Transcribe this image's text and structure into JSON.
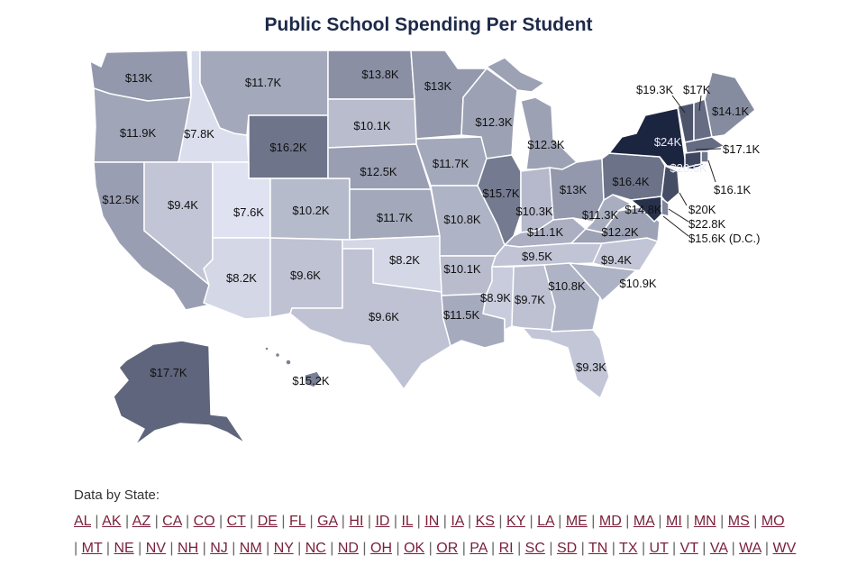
{
  "title": "Public School Spending Per Student",
  "colors": {
    "title": "#1e2a4a",
    "link": "#7a1f3a",
    "scale_light": "#dfe2f1",
    "scale_dark": "#1c2540"
  },
  "states": {
    "WA": {
      "value": 13.0,
      "label": "$13K"
    },
    "OR": {
      "value": 11.9,
      "label": "$11.9K"
    },
    "CA": {
      "value": 12.5,
      "label": "$12.5K"
    },
    "ID": {
      "value": 7.8,
      "label": "$7.8K"
    },
    "NV": {
      "value": 9.4,
      "label": "$9.4K"
    },
    "MT": {
      "value": 11.7,
      "label": "$11.7K"
    },
    "WY": {
      "value": 16.2,
      "label": "$16.2K"
    },
    "UT": {
      "value": 7.6,
      "label": "$7.6K"
    },
    "AZ": {
      "value": 8.2,
      "label": "$8.2K"
    },
    "CO": {
      "value": 10.2,
      "label": "$10.2K"
    },
    "NM": {
      "value": 9.6,
      "label": "$9.6K"
    },
    "ND": {
      "value": 13.8,
      "label": "$13.8K"
    },
    "SD": {
      "value": 10.1,
      "label": "$10.1K"
    },
    "NE": {
      "value": 12.5,
      "label": "$12.5K"
    },
    "KS": {
      "value": 11.7,
      "label": "$11.7K"
    },
    "OK": {
      "value": 8.2,
      "label": "$8.2K"
    },
    "TX": {
      "value": 9.6,
      "label": "$9.6K"
    },
    "MN": {
      "value": 13.0,
      "label": "$13K"
    },
    "IA": {
      "value": 11.7,
      "label": "$11.7K"
    },
    "MO": {
      "value": 10.8,
      "label": "$10.8K"
    },
    "AR": {
      "value": 10.1,
      "label": "$10.1K"
    },
    "LA": {
      "value": 11.5,
      "label": "$11.5K"
    },
    "WI": {
      "value": 12.3,
      "label": "$12.3K"
    },
    "IL": {
      "value": 15.7,
      "label": "$15.7K"
    },
    "MI": {
      "value": 12.3,
      "label": "$12.3K"
    },
    "IN": {
      "value": 10.3,
      "label": "$10.3K"
    },
    "OH": {
      "value": 13.0,
      "label": "$13K"
    },
    "KY": {
      "value": 11.1,
      "label": "$11.1K"
    },
    "TN": {
      "value": 9.5,
      "label": "$9.5K"
    },
    "MS": {
      "value": 8.9,
      "label": "$8.9K"
    },
    "AL": {
      "value": 9.7,
      "label": "$9.7K"
    },
    "GA": {
      "value": 10.8,
      "label": "$10.8K"
    },
    "FL": {
      "value": 9.3,
      "label": "$9.3K"
    },
    "SC": {
      "value": 10.9,
      "label": "$10.9K"
    },
    "NC": {
      "value": 9.4,
      "label": "$9.4K"
    },
    "VA": {
      "value": 12.2,
      "label": "$12.2K"
    },
    "WV": {
      "value": 11.3,
      "label": "$11.3K"
    },
    "PA": {
      "value": 16.4,
      "label": "$16.4K"
    },
    "NY": {
      "value": 24.0,
      "label": "$24K"
    },
    "VT": {
      "value": 19.3,
      "label": "$19.3K"
    },
    "NH": {
      "value": 17.0,
      "label": "$17K"
    },
    "ME": {
      "value": 14.1,
      "label": "$14.1K"
    },
    "MA": {
      "value": 17.1,
      "label": "$17.1K"
    },
    "RI": {
      "value": 16.1,
      "label": "$16.1K"
    },
    "CT": {
      "value": 20.6,
      "label": "$20.6K"
    },
    "NJ": {
      "value": 20.0,
      "label": "$20K"
    },
    "DE": {
      "value": 14.8,
      "label": "$14.8K"
    },
    "MD": {
      "value": 22.8,
      "label": "$22.8K"
    },
    "DC": {
      "value": 15.6,
      "label": "$15.6K (D.C.)"
    },
    "AK": {
      "value": 17.7,
      "label": "$17.7K"
    },
    "HI": {
      "value": 15.2,
      "label": "$15.2K"
    }
  },
  "footer": {
    "heading": "Data by State:",
    "separator": "|",
    "links_row_1": [
      "AL",
      "AK",
      "AZ",
      "CA",
      "CO",
      "CT",
      "DE",
      "FL",
      "GA",
      "HI",
      "ID",
      "IL",
      "IN",
      "IA",
      "KS",
      "KY",
      "LA",
      "ME",
      "MD",
      "MA",
      "MI",
      "MN",
      "MS",
      "MO"
    ],
    "links_row_2": [
      "MT",
      "NE",
      "NV",
      "NH",
      "NJ",
      "NM",
      "NY",
      "NC",
      "ND",
      "OH",
      "OK",
      "OR",
      "PA",
      "RI",
      "SC",
      "SD",
      "TN",
      "TX",
      "UT",
      "VT",
      "VA",
      "WA",
      "WV"
    ]
  }
}
